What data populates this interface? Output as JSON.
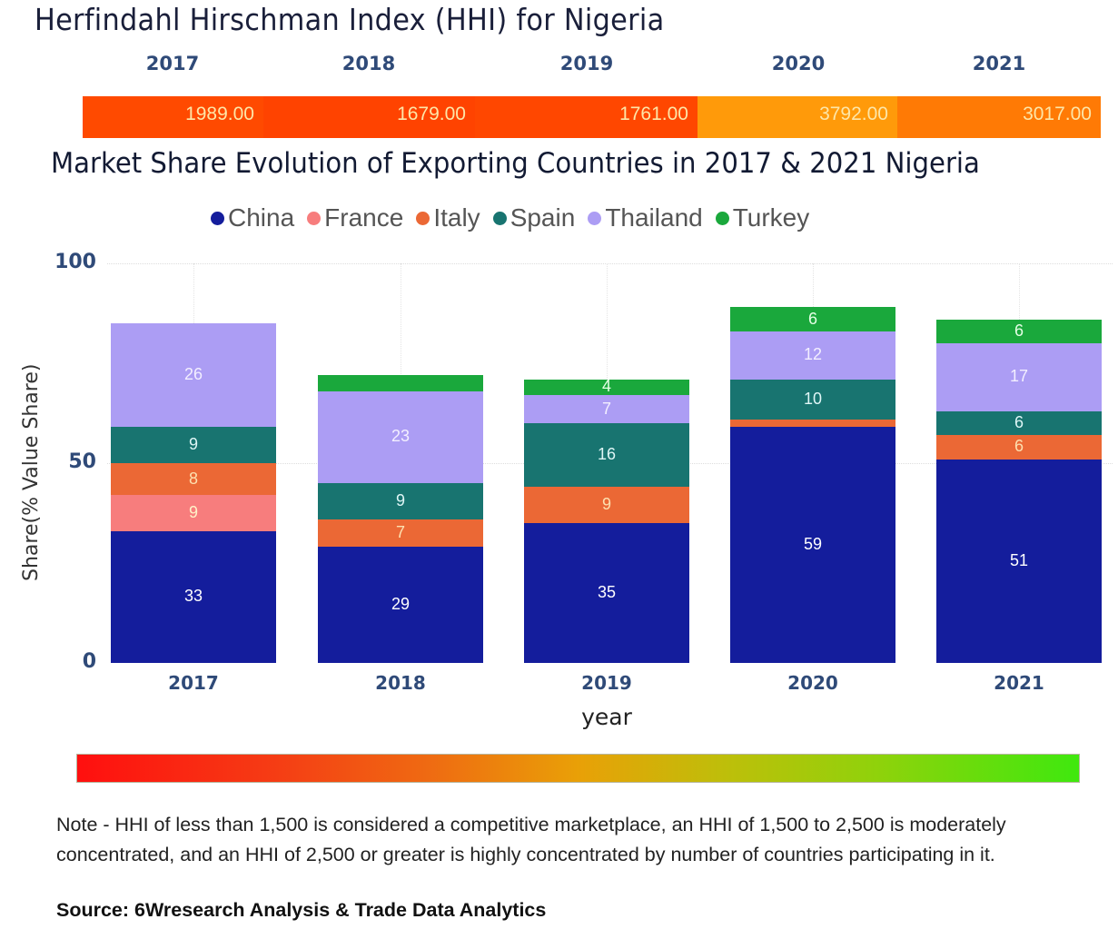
{
  "hhi": {
    "title": "Herfindahl Hirschman Index (HHI) for Nigeria",
    "years": [
      "2017",
      "2018",
      "2019",
      "2020",
      "2021"
    ],
    "values": [
      "1989.00",
      "1679.00",
      "1761.00",
      "3792.00",
      "3017.00"
    ],
    "colors": [
      "#ff4a00",
      "#ff4300",
      "#ff4700",
      "#ff9a0a",
      "#ff7a05"
    ]
  },
  "chart_data": {
    "type": "bar",
    "stacked": true,
    "title": "Market Share Evolution of Exporting Countries in 2017 & 2021 Nigeria",
    "xlabel": "year",
    "ylabel": "Share(% Value Share)",
    "ylim": [
      0,
      100
    ],
    "yticks": [
      "0",
      "50",
      "100"
    ],
    "categories": [
      "2017",
      "2018",
      "2019",
      "2020",
      "2021"
    ],
    "legend_position": "top-center",
    "series": [
      {
        "name": "China",
        "color": "#141d9c",
        "label_color": "#ffffff",
        "values": [
          33,
          29,
          35,
          59,
          51
        ],
        "labels": [
          "33",
          "29",
          "35",
          "59",
          "51"
        ]
      },
      {
        "name": "France",
        "color": "#f77d7d",
        "label_color": "#fff2c8",
        "values": [
          9,
          0,
          0,
          0,
          0
        ],
        "labels": [
          "9",
          "",
          "",
          "",
          ""
        ]
      },
      {
        "name": "Italy",
        "color": "#eb6835",
        "label_color": "#fde0b0",
        "values": [
          8,
          7,
          9,
          2,
          6
        ],
        "labels": [
          "8",
          "7",
          "9",
          "",
          "6"
        ]
      },
      {
        "name": "Spain",
        "color": "#187470",
        "label_color": "#dff6f6",
        "values": [
          9,
          9,
          16,
          10,
          6
        ],
        "labels": [
          "9",
          "9",
          "16",
          "10",
          "6"
        ]
      },
      {
        "name": "Thailand",
        "color": "#ac9df4",
        "label_color": "#f3efff",
        "values": [
          26,
          23,
          7,
          12,
          17
        ],
        "labels": [
          "26",
          "23",
          "7",
          "12",
          "17"
        ]
      },
      {
        "name": "Turkey",
        "color": "#1aa83c",
        "label_color": "#e6ffe6",
        "values": [
          0,
          4,
          4,
          6,
          6
        ],
        "labels": [
          "",
          "",
          "4",
          "6",
          "6"
        ]
      }
    ]
  },
  "scale": {
    "description": "HHI color scale from competitive (red) to highly concentrated (green)"
  },
  "note": "Note - HHI of less than 1,500 is considered a competitive marketplace, an HHI of 1,500 to 2,500 is moderately concentrated, and an HHI of 2,500 or greater is highly concentrated by number of countries participating in it.",
  "source": "Source: 6Wresearch Analysis & Trade Data Analytics"
}
